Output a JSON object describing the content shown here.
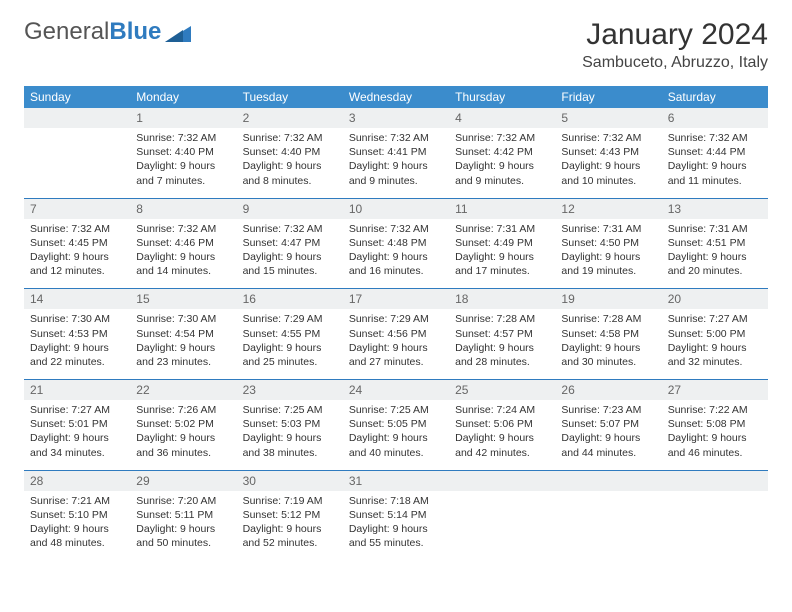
{
  "logo": {
    "text1": "General",
    "text2": "Blue"
  },
  "title": "January 2024",
  "location": "Sambuceto, Abruzzo, Italy",
  "colors": {
    "header_bg": "#3b8ccc",
    "header_text": "#ffffff",
    "daynum_bg": "#eef0f1",
    "daynum_text": "#666666",
    "rule": "#2f7bbf",
    "logo_gray": "#555555",
    "logo_blue": "#2f7bbf"
  },
  "dow": [
    "Sunday",
    "Monday",
    "Tuesday",
    "Wednesday",
    "Thursday",
    "Friday",
    "Saturday"
  ],
  "weeks": [
    [
      null,
      {
        "n": "1",
        "sr": "Sunrise: 7:32 AM",
        "ss": "Sunset: 4:40 PM",
        "d1": "Daylight: 9 hours",
        "d2": "and 7 minutes."
      },
      {
        "n": "2",
        "sr": "Sunrise: 7:32 AM",
        "ss": "Sunset: 4:40 PM",
        "d1": "Daylight: 9 hours",
        "d2": "and 8 minutes."
      },
      {
        "n": "3",
        "sr": "Sunrise: 7:32 AM",
        "ss": "Sunset: 4:41 PM",
        "d1": "Daylight: 9 hours",
        "d2": "and 9 minutes."
      },
      {
        "n": "4",
        "sr": "Sunrise: 7:32 AM",
        "ss": "Sunset: 4:42 PM",
        "d1": "Daylight: 9 hours",
        "d2": "and 9 minutes."
      },
      {
        "n": "5",
        "sr": "Sunrise: 7:32 AM",
        "ss": "Sunset: 4:43 PM",
        "d1": "Daylight: 9 hours",
        "d2": "and 10 minutes."
      },
      {
        "n": "6",
        "sr": "Sunrise: 7:32 AM",
        "ss": "Sunset: 4:44 PM",
        "d1": "Daylight: 9 hours",
        "d2": "and 11 minutes."
      }
    ],
    [
      {
        "n": "7",
        "sr": "Sunrise: 7:32 AM",
        "ss": "Sunset: 4:45 PM",
        "d1": "Daylight: 9 hours",
        "d2": "and 12 minutes."
      },
      {
        "n": "8",
        "sr": "Sunrise: 7:32 AM",
        "ss": "Sunset: 4:46 PM",
        "d1": "Daylight: 9 hours",
        "d2": "and 14 minutes."
      },
      {
        "n": "9",
        "sr": "Sunrise: 7:32 AM",
        "ss": "Sunset: 4:47 PM",
        "d1": "Daylight: 9 hours",
        "d2": "and 15 minutes."
      },
      {
        "n": "10",
        "sr": "Sunrise: 7:32 AM",
        "ss": "Sunset: 4:48 PM",
        "d1": "Daylight: 9 hours",
        "d2": "and 16 minutes."
      },
      {
        "n": "11",
        "sr": "Sunrise: 7:31 AM",
        "ss": "Sunset: 4:49 PM",
        "d1": "Daylight: 9 hours",
        "d2": "and 17 minutes."
      },
      {
        "n": "12",
        "sr": "Sunrise: 7:31 AM",
        "ss": "Sunset: 4:50 PM",
        "d1": "Daylight: 9 hours",
        "d2": "and 19 minutes."
      },
      {
        "n": "13",
        "sr": "Sunrise: 7:31 AM",
        "ss": "Sunset: 4:51 PM",
        "d1": "Daylight: 9 hours",
        "d2": "and 20 minutes."
      }
    ],
    [
      {
        "n": "14",
        "sr": "Sunrise: 7:30 AM",
        "ss": "Sunset: 4:53 PM",
        "d1": "Daylight: 9 hours",
        "d2": "and 22 minutes."
      },
      {
        "n": "15",
        "sr": "Sunrise: 7:30 AM",
        "ss": "Sunset: 4:54 PM",
        "d1": "Daylight: 9 hours",
        "d2": "and 23 minutes."
      },
      {
        "n": "16",
        "sr": "Sunrise: 7:29 AM",
        "ss": "Sunset: 4:55 PM",
        "d1": "Daylight: 9 hours",
        "d2": "and 25 minutes."
      },
      {
        "n": "17",
        "sr": "Sunrise: 7:29 AM",
        "ss": "Sunset: 4:56 PM",
        "d1": "Daylight: 9 hours",
        "d2": "and 27 minutes."
      },
      {
        "n": "18",
        "sr": "Sunrise: 7:28 AM",
        "ss": "Sunset: 4:57 PM",
        "d1": "Daylight: 9 hours",
        "d2": "and 28 minutes."
      },
      {
        "n": "19",
        "sr": "Sunrise: 7:28 AM",
        "ss": "Sunset: 4:58 PM",
        "d1": "Daylight: 9 hours",
        "d2": "and 30 minutes."
      },
      {
        "n": "20",
        "sr": "Sunrise: 7:27 AM",
        "ss": "Sunset: 5:00 PM",
        "d1": "Daylight: 9 hours",
        "d2": "and 32 minutes."
      }
    ],
    [
      {
        "n": "21",
        "sr": "Sunrise: 7:27 AM",
        "ss": "Sunset: 5:01 PM",
        "d1": "Daylight: 9 hours",
        "d2": "and 34 minutes."
      },
      {
        "n": "22",
        "sr": "Sunrise: 7:26 AM",
        "ss": "Sunset: 5:02 PM",
        "d1": "Daylight: 9 hours",
        "d2": "and 36 minutes."
      },
      {
        "n": "23",
        "sr": "Sunrise: 7:25 AM",
        "ss": "Sunset: 5:03 PM",
        "d1": "Daylight: 9 hours",
        "d2": "and 38 minutes."
      },
      {
        "n": "24",
        "sr": "Sunrise: 7:25 AM",
        "ss": "Sunset: 5:05 PM",
        "d1": "Daylight: 9 hours",
        "d2": "and 40 minutes."
      },
      {
        "n": "25",
        "sr": "Sunrise: 7:24 AM",
        "ss": "Sunset: 5:06 PM",
        "d1": "Daylight: 9 hours",
        "d2": "and 42 minutes."
      },
      {
        "n": "26",
        "sr": "Sunrise: 7:23 AM",
        "ss": "Sunset: 5:07 PM",
        "d1": "Daylight: 9 hours",
        "d2": "and 44 minutes."
      },
      {
        "n": "27",
        "sr": "Sunrise: 7:22 AM",
        "ss": "Sunset: 5:08 PM",
        "d1": "Daylight: 9 hours",
        "d2": "and 46 minutes."
      }
    ],
    [
      {
        "n": "28",
        "sr": "Sunrise: 7:21 AM",
        "ss": "Sunset: 5:10 PM",
        "d1": "Daylight: 9 hours",
        "d2": "and 48 minutes."
      },
      {
        "n": "29",
        "sr": "Sunrise: 7:20 AM",
        "ss": "Sunset: 5:11 PM",
        "d1": "Daylight: 9 hours",
        "d2": "and 50 minutes."
      },
      {
        "n": "30",
        "sr": "Sunrise: 7:19 AM",
        "ss": "Sunset: 5:12 PM",
        "d1": "Daylight: 9 hours",
        "d2": "and 52 minutes."
      },
      {
        "n": "31",
        "sr": "Sunrise: 7:18 AM",
        "ss": "Sunset: 5:14 PM",
        "d1": "Daylight: 9 hours",
        "d2": "and 55 minutes."
      },
      null,
      null,
      null
    ]
  ]
}
